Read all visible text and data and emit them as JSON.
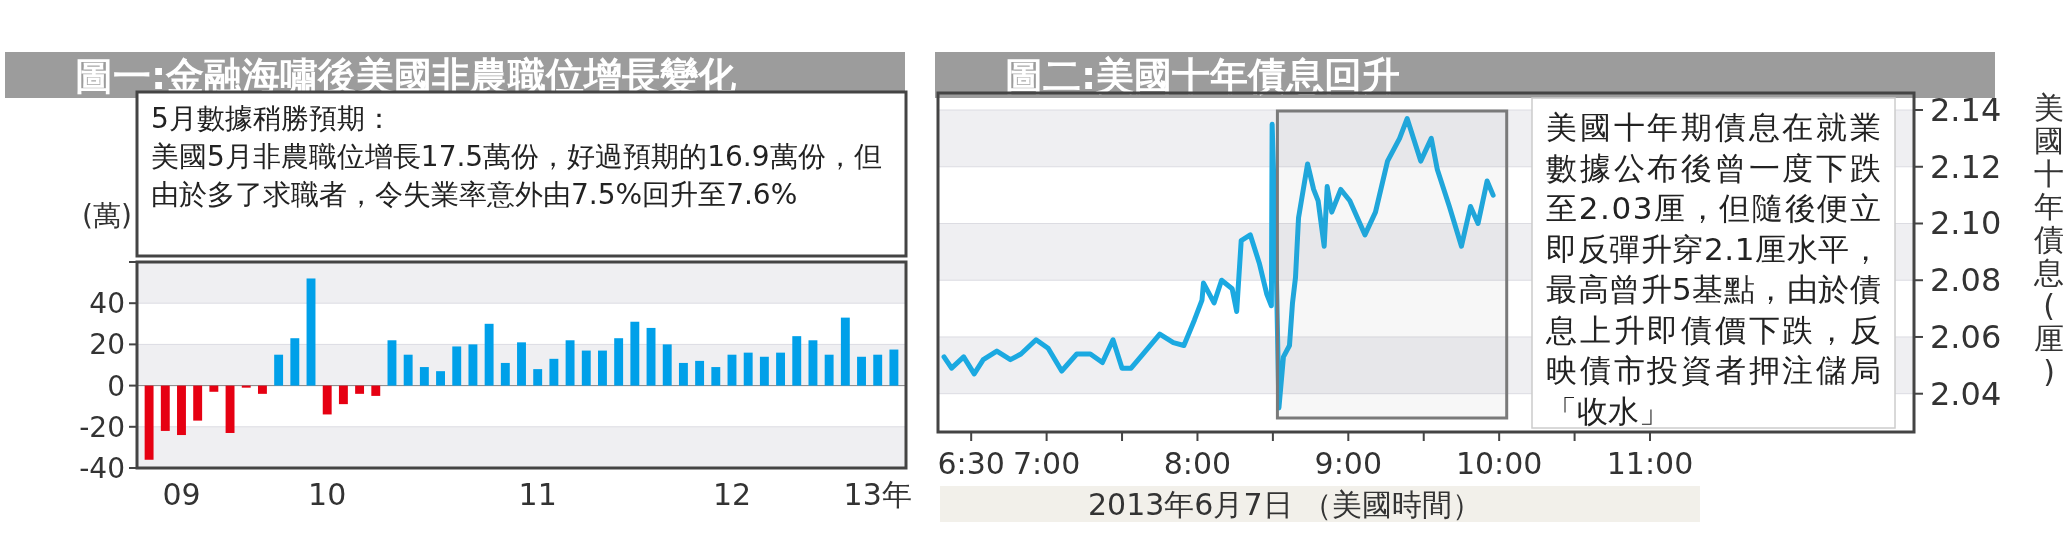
{
  "chart_data": [
    {
      "type": "bar",
      "title": "圖一:金融海嘯後美國非農職位增長變化",
      "ylabel": "(萬)",
      "annotations": [
        "5月數據稍勝預期：",
        "美國5月非農職位增長17.5萬份，好過預期的16.9萬份，但由於多了求職者，令失業率意外由7.5%回升至7.6%"
      ],
      "categories": [
        null,
        null,
        "09",
        null,
        null,
        null,
        null,
        null,
        null,
        null,
        null,
        "10",
        null,
        null,
        null,
        null,
        null,
        null,
        null,
        null,
        null,
        null,
        null,
        null,
        "11",
        null,
        null,
        null,
        null,
        null,
        null,
        null,
        null,
        null,
        null,
        null,
        "12",
        null,
        null,
        null,
        null,
        null,
        null,
        null,
        null,
        "13年",
        null
      ],
      "values": [
        -36,
        -22,
        -24,
        -17,
        -3,
        -23,
        -1,
        -4,
        15,
        23,
        52,
        -14,
        -9,
        -4,
        -5,
        22,
        15,
        9,
        7,
        19,
        20,
        30,
        11,
        21,
        8,
        13,
        22,
        17,
        17,
        23,
        31,
        28,
        20,
        11,
        12,
        9,
        15,
        16,
        14,
        16,
        24,
        22,
        15,
        33,
        14,
        15,
        17.5
      ],
      "colors": [
        "#e60012",
        "#e60012",
        "#e60012",
        "#e60012",
        "#e60012",
        "#e60012",
        "#e60012",
        "#e60012",
        "#00a0e9",
        "#00a0e9",
        "#00a0e9",
        "#e60012",
        "#e60012",
        "#e60012",
        "#e60012",
        "#00a0e9",
        "#00a0e9",
        "#00a0e9",
        "#00a0e9",
        "#00a0e9",
        "#00a0e9",
        "#00a0e9",
        "#00a0e9",
        "#00a0e9",
        "#00a0e9",
        "#00a0e9",
        "#00a0e9",
        "#00a0e9",
        "#00a0e9",
        "#00a0e9",
        "#00a0e9",
        "#00a0e9",
        "#00a0e9",
        "#00a0e9",
        "#00a0e9",
        "#00a0e9",
        "#00a0e9",
        "#00a0e9",
        "#00a0e9",
        "#00a0e9",
        "#00a0e9",
        "#00a0e9",
        "#00a0e9",
        "#00a0e9",
        "#00a0e9",
        "#00a0e9",
        "#00a0e9"
      ],
      "ylim": [
        -40,
        60
      ],
      "yticks": [
        -40,
        -20,
        0,
        20,
        40,
        {
          "value": 60,
          "label": null
        }
      ],
      "grid": "y"
    },
    {
      "type": "line",
      "title": "圖二:美國十年債息回升",
      "xlabel": "2013年6月7日 （美國時間）",
      "ylabel": "美國十年債息(厘)",
      "annotations": [
        "美國十年期債息在就業數據公布後曾一度下跌至2.03厘，但隨後便立即反彈升穿2.1厘水平，最高曾升5基點，由於債息上升即債價下跌，反映債市投資者押注儲局「收水」"
      ],
      "color": "#1ba9e1",
      "x": [
        6.32,
        6.37,
        6.45,
        6.52,
        6.58,
        6.67,
        6.76,
        6.83,
        6.93,
        7.01,
        7.1,
        7.2,
        7.29,
        7.37,
        7.44,
        7.5,
        7.56,
        7.64,
        7.75,
        7.84,
        7.91,
        7.98,
        8.03,
        8.04,
        8.11,
        8.16,
        8.23,
        8.26,
        8.29,
        8.35,
        8.41,
        8.46,
        8.49,
        8.495,
        8.52,
        8.54,
        8.57,
        8.61,
        8.63,
        8.65,
        8.67,
        8.73,
        8.77,
        8.8,
        8.84,
        8.86,
        8.89,
        8.95,
        9.01,
        9.11,
        9.18,
        9.26,
        9.34,
        9.39,
        9.48,
        9.55,
        9.59,
        9.67,
        9.75,
        9.81,
        9.86,
        9.92,
        9.96
      ],
      "values": [
        2.053,
        2.049,
        2.053,
        2.047,
        2.052,
        2.055,
        2.052,
        2.054,
        2.059,
        2.056,
        2.048,
        2.054,
        2.054,
        2.051,
        2.059,
        2.049,
        2.049,
        2.054,
        2.061,
        2.058,
        2.057,
        2.066,
        2.073,
        2.079,
        2.072,
        2.08,
        2.077,
        2.069,
        2.094,
        2.096,
        2.086,
        2.075,
        2.071,
        2.135,
        2.091,
        2.035,
        2.053,
        2.057,
        2.072,
        2.081,
        2.102,
        2.121,
        2.112,
        2.108,
        2.092,
        2.113,
        2.104,
        2.112,
        2.108,
        2.096,
        2.104,
        2.122,
        2.13,
        2.137,
        2.122,
        2.13,
        2.119,
        2.106,
        2.092,
        2.106,
        2.1,
        2.115,
        2.11
      ],
      "xlim": [
        6.28,
        12.75
      ],
      "xticks": [
        {
          "value": 6.5,
          "label": "6:30"
        },
        {
          "value": 7,
          "label": "7:00"
        },
        {
          "value": 7.5,
          "label": null
        },
        {
          "value": 8,
          "label": "8:00"
        },
        {
          "value": 8.5,
          "label": null
        },
        {
          "value": 9,
          "label": "9:00"
        },
        {
          "value": 9.5,
          "label": null
        },
        {
          "value": 10,
          "label": "10:00"
        },
        {
          "value": 10.5,
          "label": null
        },
        {
          "value": 11,
          "label": "11:00"
        }
      ],
      "ylim": [
        2.0265,
        2.146
      ],
      "yticks": [
        2.04,
        2.06,
        2.08,
        {
          "value": 2.1,
          "label": "2.10"
        },
        2.12,
        2.14
      ],
      "bands": [
        {
          "axis": "x",
          "from": 8.53,
          "to": 10.05,
          "color": "#7a7a7a"
        }
      ],
      "grid": "y"
    }
  ]
}
